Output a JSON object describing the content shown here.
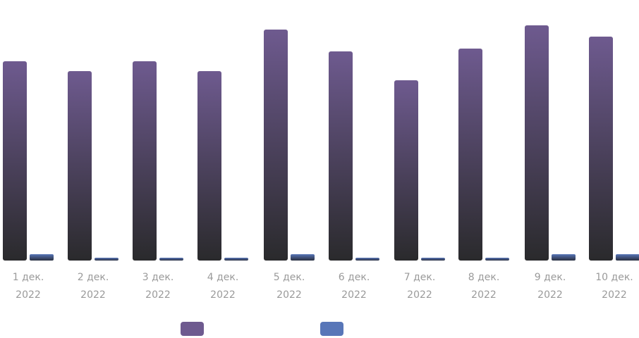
{
  "chart_data": {
    "type": "bar",
    "categories": [
      [
        "1 дек.",
        "2022"
      ],
      [
        "2 дек.",
        "2022"
      ],
      [
        "3 дек.",
        "2022"
      ],
      [
        "4 дек.",
        "2022"
      ],
      [
        "5 дек.",
        "2022"
      ],
      [
        "6 дек.",
        "2022"
      ],
      [
        "7 дек.",
        "2022"
      ],
      [
        "8 дек.",
        "2022"
      ],
      [
        "9 дек.",
        "2022"
      ],
      [
        "10 дек.",
        "2022"
      ]
    ],
    "series": [
      {
        "values": [
          283,
          269,
          283,
          269,
          328,
          297,
          256,
          301,
          334,
          318
        ],
        "color": "#6e5a8f",
        "color_bottom": "#2a2a2c"
      },
      {
        "values": [
          9,
          4,
          4,
          4,
          9,
          4,
          4,
          4,
          9,
          9
        ],
        "color": "#5876b8",
        "color_bottom": "#2a2f40"
      }
    ],
    "ylim": [
      0,
      340
    ],
    "grid": false,
    "legend": "bottom-center",
    "xlabel": "",
    "ylabel": ""
  }
}
